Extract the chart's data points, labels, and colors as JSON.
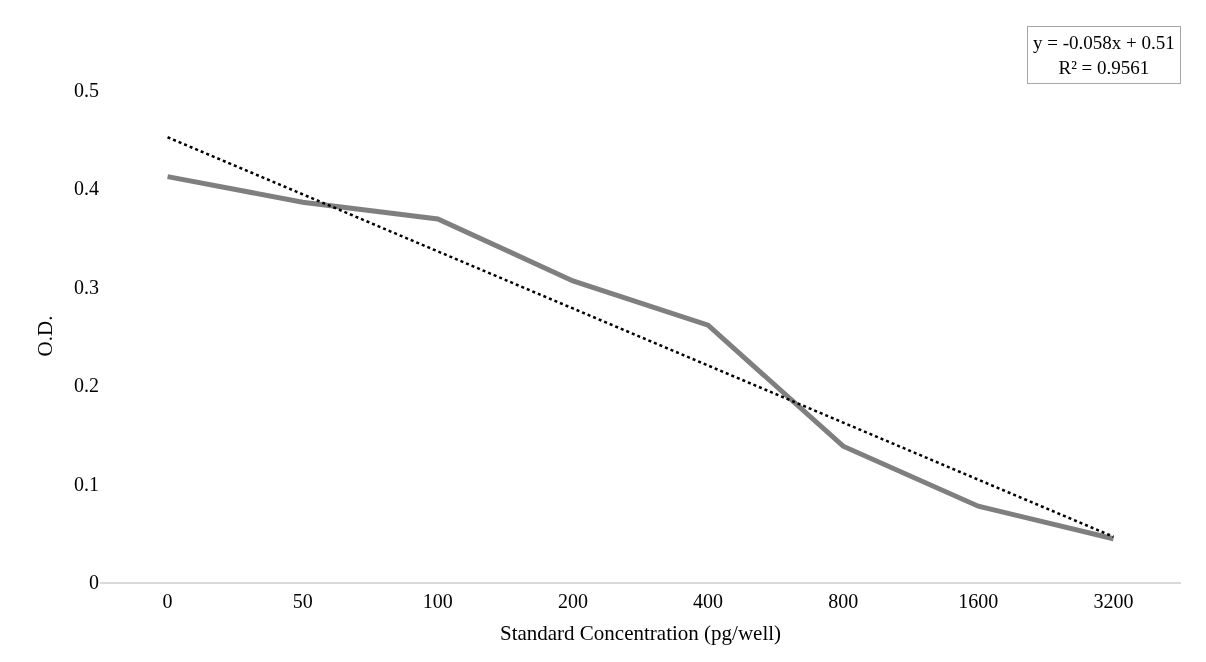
{
  "chart_data": {
    "type": "line",
    "xlabel": "Standard Concentration (pg/well)",
    "ylabel": "O.D.",
    "categories": [
      "0",
      "50",
      "100",
      "200",
      "400",
      "800",
      "1600",
      "3200"
    ],
    "series": [
      {
        "color": "#7f7f7f",
        "line_style": "solid",
        "values": [
          0.412,
          0.386,
          0.369,
          0.306,
          0.261,
          0.138,
          0.077,
          0.044
        ]
      },
      {
        "color": "#000000",
        "line_style": "dotted",
        "values": [
          0.452,
          0.394,
          0.336,
          0.278,
          0.22,
          0.162,
          0.104,
          0.046
        ]
      }
    ],
    "ylim": [
      0,
      0.5
    ],
    "yticks": [
      0,
      0.1,
      0.2,
      0.3,
      0.4,
      0.5
    ],
    "annotations": [
      "y = -0.058x + 0.51\nR² = 0.9561"
    ]
  }
}
